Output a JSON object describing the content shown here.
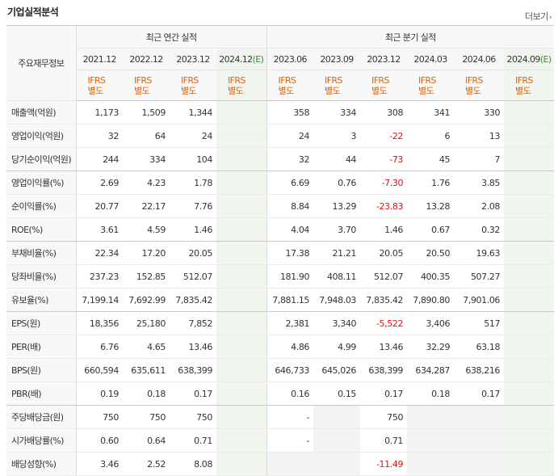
{
  "header": {
    "title": "기업실적분석",
    "more_label": "더보기",
    "more_arrow": "›"
  },
  "table": {
    "row_header_label": "주요재무정보",
    "group_annual": "최근 연간 실적",
    "group_quarter": "최근 분기 실적",
    "annual_periods": [
      "2021.12",
      "2022.12",
      "2023.12",
      "2024.12"
    ],
    "quarter_periods": [
      "2023.06",
      "2023.09",
      "2023.12",
      "2024.03",
      "2024.06",
      "2024.09"
    ],
    "estimate_marker": "(E)",
    "ifrs_line1": "IFRS",
    "ifrs_line2": "별도",
    "rows": [
      {
        "label": "매출액(억원)",
        "values": [
          "1,173",
          "1,509",
          "1,344",
          "",
          "358",
          "334",
          "308",
          "341",
          "330",
          ""
        ]
      },
      {
        "label": "영업이익(억원)",
        "values": [
          "32",
          "64",
          "24",
          "",
          "24",
          "3",
          "-22",
          "6",
          "13",
          ""
        ]
      },
      {
        "label": "당기순이익(억원)",
        "values": [
          "244",
          "334",
          "104",
          "",
          "32",
          "44",
          "-73",
          "45",
          "7",
          ""
        ]
      },
      {
        "label": "영업이익률(%)",
        "values": [
          "2.69",
          "4.23",
          "1.78",
          "",
          "6.69",
          "0.76",
          "-7.30",
          "1.76",
          "3.85",
          ""
        ]
      },
      {
        "label": "순이익률(%)",
        "values": [
          "20.77",
          "22.17",
          "7.76",
          "",
          "8.84",
          "13.29",
          "-23.83",
          "13.28",
          "2.08",
          ""
        ]
      },
      {
        "label": "ROE(%)",
        "values": [
          "3.61",
          "4.59",
          "1.46",
          "",
          "4.04",
          "3.70",
          "1.46",
          "0.67",
          "0.32",
          ""
        ]
      },
      {
        "label": "부채비율(%)",
        "values": [
          "22.34",
          "17.20",
          "20.05",
          "",
          "17.38",
          "21.21",
          "20.05",
          "20.50",
          "19.63",
          ""
        ]
      },
      {
        "label": "당좌비율(%)",
        "values": [
          "237.23",
          "152.85",
          "512.07",
          "",
          "181.90",
          "408.11",
          "512.07",
          "400.35",
          "507.27",
          ""
        ]
      },
      {
        "label": "유보율(%)",
        "values": [
          "7,199.14",
          "7,692.99",
          "7,835.42",
          "",
          "7,881.15",
          "7,948.03",
          "7,835.42",
          "7,890.80",
          "7,901.06",
          ""
        ]
      },
      {
        "label": "EPS(원)",
        "values": [
          "18,356",
          "25,180",
          "7,852",
          "",
          "2,381",
          "3,340",
          "-5,522",
          "3,406",
          "517",
          ""
        ]
      },
      {
        "label": "PER(배)",
        "values": [
          "6.76",
          "4.65",
          "13.46",
          "",
          "4.86",
          "4.99",
          "13.46",
          "32.29",
          "63.18",
          ""
        ]
      },
      {
        "label": "BPS(원)",
        "values": [
          "660,594",
          "635,611",
          "638,399",
          "",
          "646,733",
          "645,026",
          "638,399",
          "634,287",
          "638,216",
          ""
        ]
      },
      {
        "label": "PBR(배)",
        "values": [
          "0.19",
          "0.18",
          "0.17",
          "",
          "0.16",
          "0.15",
          "0.17",
          "0.18",
          "0.17",
          ""
        ]
      },
      {
        "label": "주당배당금(원)",
        "values": [
          "750",
          "750",
          "750",
          "",
          "-",
          "",
          "750",
          "",
          "",
          ""
        ]
      },
      {
        "label": "시가배당률(%)",
        "values": [
          "0.60",
          "0.64",
          "0.71",
          "",
          "-",
          "",
          "0.71",
          "",
          "",
          ""
        ]
      },
      {
        "label": "배당성향(%)",
        "values": [
          "3.46",
          "2.52",
          "8.08",
          "",
          "",
          "",
          "-11.49",
          "",
          "",
          ""
        ]
      }
    ]
  }
}
